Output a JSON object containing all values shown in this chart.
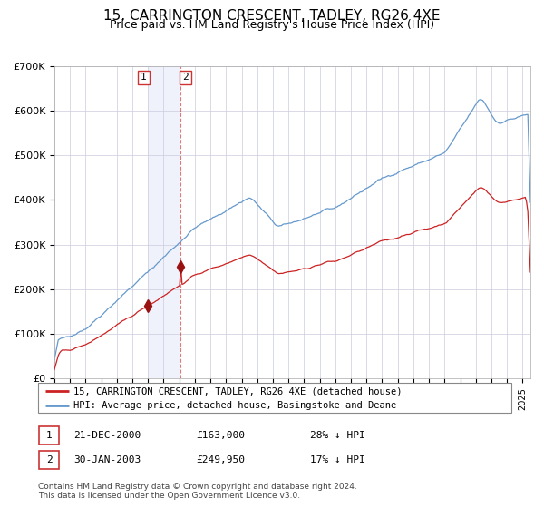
{
  "title": "15, CARRINGTON CRESCENT, TADLEY, RG26 4XE",
  "subtitle": "Price paid vs. HM Land Registry's House Price Index (HPI)",
  "title_fontsize": 11,
  "subtitle_fontsize": 9,
  "legend_line1": "15, CARRINGTON CRESCENT, TADLEY, RG26 4XE (detached house)",
  "legend_line2": "HPI: Average price, detached house, Basingstoke and Deane",
  "hpi_color": "#6699CC",
  "price_color": "#CC2222",
  "marker_color": "#991111",
  "background_color": "#ffffff",
  "grid_color": "#ccccdd",
  "purchase1_date": 2000.97,
  "purchase1_price": 163000,
  "purchase2_date": 2003.08,
  "purchase2_price": 249950,
  "footer1": "Contains HM Land Registry data © Crown copyright and database right 2024.",
  "footer2": "This data is licensed under the Open Government Licence v3.0.",
  "xmin": 1995.0,
  "xmax": 2025.5,
  "ymin": 0,
  "ymax": 700000,
  "highlight_xstart": 2000.97,
  "highlight_xend": 2003.08
}
